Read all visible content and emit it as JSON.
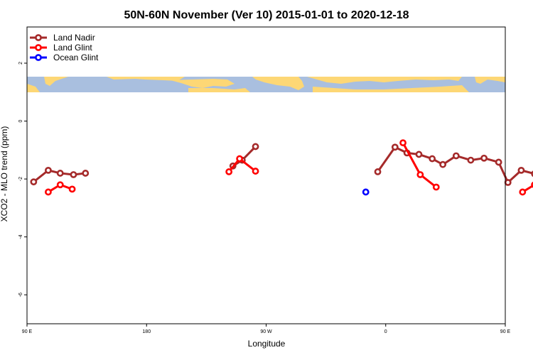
{
  "chart_data": {
    "type": "line",
    "title": "50N-60N November (Ver 10)   2015-01-01 to 2020-12-18",
    "xlabel": "Longitude",
    "ylabel": "XCO2 - MLO trend (ppm)",
    "xlim": [
      90,
      450
    ],
    "ylim": [
      -7,
      3.25
    ],
    "x_ticks": [
      {
        "value": 90,
        "label": "90 E"
      },
      {
        "value": 180,
        "label": "180"
      },
      {
        "value": 270,
        "label": "90 W"
      },
      {
        "value": 360,
        "label": "0"
      },
      {
        "value": 450,
        "label": "90 E"
      },
      {
        "value": 540,
        "label": "180"
      }
    ],
    "y_ticks": [
      {
        "value": 2,
        "label": "2"
      },
      {
        "value": 0,
        "label": "0"
      },
      {
        "value": -2,
        "label": "-2"
      },
      {
        "value": -4,
        "label": "-4"
      },
      {
        "value": -6,
        "label": "-6"
      }
    ],
    "legend_position": "top-left",
    "map_strip": {
      "y_range": [
        1.0,
        1.55
      ],
      "ocean_color": "#a9bfdf",
      "land_color": "#fdd775"
    },
    "series": [
      {
        "name": "Land Nadir",
        "color": "#a52a2a",
        "segments": [
          [
            [
              95,
              -2.1
            ],
            [
              106,
              -1.7
            ],
            [
              115,
              -1.8
            ],
            [
              125,
              -1.85
            ],
            [
              134,
              -1.8
            ]
          ],
          [
            [
              245,
              -1.55
            ],
            [
              252,
              -1.35
            ],
            [
              262,
              -0.88
            ]
          ],
          [
            [
              354,
              -1.75
            ],
            [
              367,
              -0.9
            ],
            [
              376,
              -1.1
            ],
            [
              385,
              -1.15
            ],
            [
              395,
              -1.3
            ],
            [
              403,
              -1.5
            ],
            [
              413,
              -1.2
            ],
            [
              424,
              -1.35
            ],
            [
              434,
              -1.28
            ],
            [
              445,
              -1.42
            ],
            [
              452,
              -2.12
            ],
            [
              462,
              -1.7
            ],
            [
              472,
              -1.82
            ],
            [
              481,
              -1.87
            ],
            [
              490,
              -1.82
            ]
          ]
        ]
      },
      {
        "name": "Land Glint",
        "color": "#ff0000",
        "segments": [
          [
            [
              106,
              -2.45
            ],
            [
              115,
              -2.2
            ],
            [
              124,
              -2.35
            ]
          ],
          [
            [
              242,
              -1.75
            ],
            [
              250,
              -1.3
            ],
            [
              262,
              -1.73
            ]
          ],
          [
            [
              373,
              -0.75
            ],
            [
              386,
              -1.85
            ],
            [
              398,
              -2.28
            ]
          ],
          [
            [
              463,
              -2.45
            ],
            [
              472,
              -2.2
            ],
            [
              481,
              -2.35
            ]
          ]
        ]
      },
      {
        "name": "Ocean Glint",
        "color": "#0000ff",
        "segments": [
          [
            [
              345,
              -2.45
            ]
          ]
        ]
      }
    ]
  }
}
